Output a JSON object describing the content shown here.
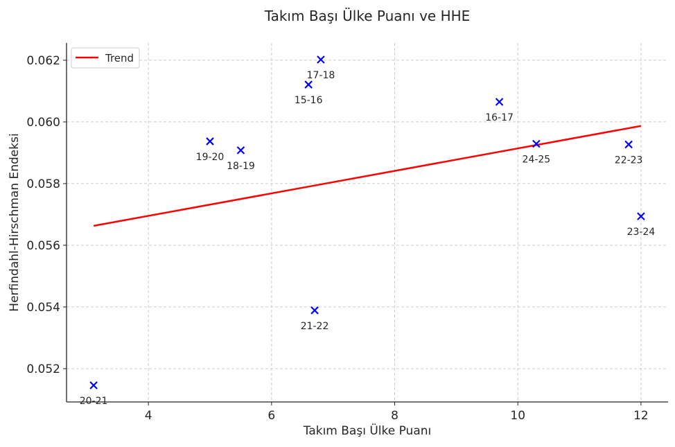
{
  "chart_data": {
    "type": "scatter",
    "title": "Takım Başı Ülke Puanı ve HHE",
    "xlabel": "Takım Başı Ülke Puanı",
    "ylabel": "Herfindahl-Hirschman Endeksi",
    "xlim": [
      2.67,
      12.44
    ],
    "ylim": [
      0.05092,
      0.06256
    ],
    "xticks": [
      4,
      6,
      8,
      10,
      12
    ],
    "yticks": [
      0.052,
      0.054,
      0.056,
      0.058,
      0.06,
      0.062
    ],
    "xtick_labels": [
      "4",
      "6",
      "8",
      "10",
      "12"
    ],
    "ytick_labels": [
      "0.052",
      "0.054",
      "0.056",
      "0.058",
      "0.060",
      "0.062"
    ],
    "grid": true,
    "legend": {
      "placement": "top-left",
      "entries": [
        "Trend"
      ]
    },
    "points": [
      {
        "label": "20-21",
        "x": 3.11,
        "y": 0.05146
      },
      {
        "label": "19-20",
        "x": 5.0,
        "y": 0.05937
      },
      {
        "label": "18-19",
        "x": 5.5,
        "y": 0.05908
      },
      {
        "label": "15-16",
        "x": 6.6,
        "y": 0.06121
      },
      {
        "label": "17-18",
        "x": 6.8,
        "y": 0.06202
      },
      {
        "label": "21-22",
        "x": 6.7,
        "y": 0.05389
      },
      {
        "label": "16-17",
        "x": 9.7,
        "y": 0.06065
      },
      {
        "label": "24-25",
        "x": 10.3,
        "y": 0.05929
      },
      {
        "label": "22-23",
        "x": 11.8,
        "y": 0.05927
      },
      {
        "label": "23-24",
        "x": 12.0,
        "y": 0.05694
      }
    ],
    "trend": {
      "name": "Trend",
      "x": [
        3.11,
        12.0
      ],
      "y": [
        0.05663,
        0.05987
      ]
    },
    "colors": {
      "points": "#0000ff",
      "trend": "#ff0000"
    }
  }
}
